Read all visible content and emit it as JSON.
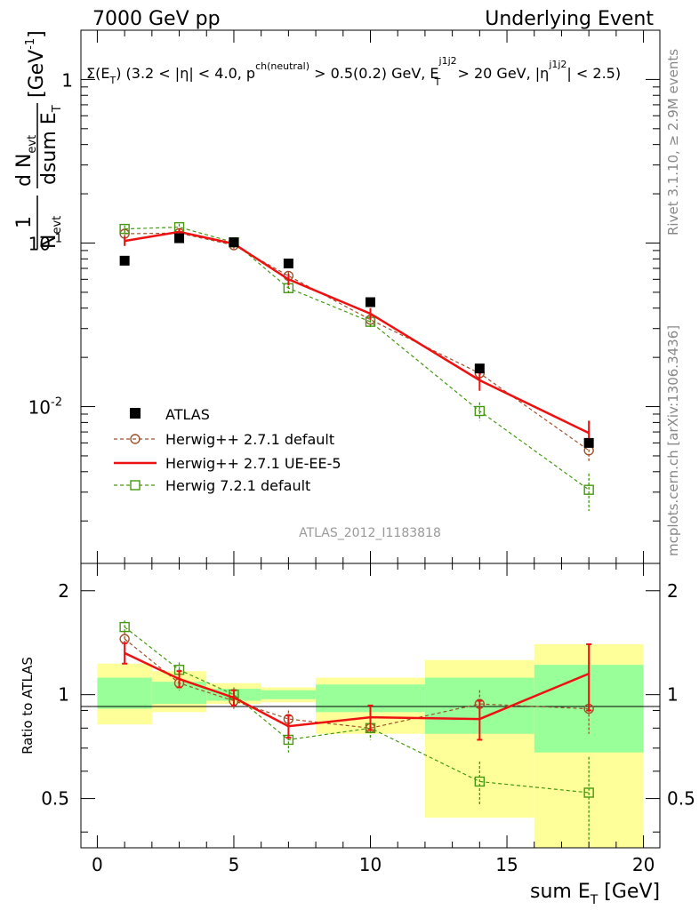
{
  "header": {
    "left": "7000 GeV pp",
    "right": "Underlying Event"
  },
  "selection_label": {
    "t1": "Σ(E",
    "t1_sub": "T",
    "t2": ") (3.2 < |η| < 4.0, p",
    "t2_sup": "ch(neutral)",
    "t3": " > 0.5(0.2) GeV, E",
    "t3_sup": "j1j2",
    "t3_sub": "T",
    "t4": " > 20 GeV, |η",
    "t4_sup": "j1j2",
    "t5": "| < 2.5)"
  },
  "y_label_main": {
    "one": "1",
    "n_evt": "N",
    "n_evt_sub": "evt",
    "d_n": "d N",
    "d_n_sub": "evt",
    "dsum": "dsum E",
    "dsum_sub": "T",
    "unit": "[GeV",
    "unit_sup": "-1",
    "unit_end": "]"
  },
  "y_label_ratio": "Ratio to ATLAS",
  "x_label": {
    "main": "sum E",
    "sub": "T",
    "unit": " [GeV]"
  },
  "analysis_tag": "ATLAS_2012_I1183818",
  "side_text": {
    "rivet": "Rivet 3.1.10, ≥ 2.9M events",
    "mcplots": "mcplots.cern.ch [arXiv:1306.3436]"
  },
  "main_y_ticks": [
    {
      "value": 1,
      "label": "1"
    },
    {
      "value": 0.1,
      "label": "10",
      "sup": "-1"
    },
    {
      "value": 0.01,
      "label": "10",
      "sup": "-2"
    }
  ],
  "x_ticks": [
    "0",
    "5",
    "10",
    "15",
    "20"
  ],
  "ratio_y_ticks": [
    "2",
    "1",
    "0.5"
  ],
  "colors": {
    "atlas": "#000000",
    "herwigpp_default": "#a0522d",
    "herwigpp_ueee5": "#ee1111",
    "herwig7": "#449911",
    "band_inner": "#99ff99",
    "band_outer": "#ffff99"
  },
  "chart_data": [
    {
      "type": "scatter",
      "panel": "main",
      "title": "Underlying Event",
      "xlabel": "sum E_T [GeV]",
      "ylabel": "1/N_evt dN_evt/dsum E_T [GeV^-1]",
      "yscale": "log",
      "xlim": [
        -0.6,
        20.6
      ],
      "ylim": [
        0.0011,
        2.0
      ],
      "legend": "lower-left",
      "x": [
        1,
        3,
        5,
        7,
        10,
        14,
        18
      ],
      "series": [
        {
          "name": "ATLAS",
          "style": "square-marker",
          "values": [
            0.078,
            0.107,
            0.101,
            0.075,
            0.0435,
            0.0171,
            0.006
          ]
        },
        {
          "name": "Herwig++ 2.7.1 default",
          "style": "dashed-circle",
          "values": [
            0.114,
            0.115,
            0.097,
            0.063,
            0.034,
            0.016,
            0.0054
          ],
          "err": [
            0.006,
            0.006,
            0.005,
            0.004,
            0.0025,
            0.0015,
            0.0008
          ]
        },
        {
          "name": "Herwig++ 2.7.1 UE-EE-5",
          "style": "solid-line",
          "values": [
            0.103,
            0.117,
            0.099,
            0.06,
            0.037,
            0.0145,
            0.0069
          ],
          "err": [
            0.007,
            0.006,
            0.005,
            0.005,
            0.003,
            0.002,
            0.0013
          ]
        },
        {
          "name": "Herwig 7.2.1 default",
          "style": "dashed-open-square",
          "values": [
            0.122,
            0.125,
            0.101,
            0.053,
            0.033,
            0.0094,
            0.0031
          ],
          "err": [
            0.006,
            0.006,
            0.005,
            0.005,
            0.003,
            0.0012,
            0.0008
          ]
        }
      ]
    },
    {
      "type": "scatter",
      "panel": "ratio",
      "ylabel": "Ratio to ATLAS",
      "xlabel": "sum E_T [GeV]",
      "yscale": "log",
      "xlim": [
        -0.6,
        20.6
      ],
      "ylim": [
        0.36,
        2.4
      ],
      "x": [
        1,
        3,
        5,
        7,
        10,
        14,
        18
      ],
      "bands": [
        {
          "x0": 0,
          "x1": 2,
          "inner": [
            0.91,
            1.12
          ],
          "outer": [
            0.82,
            1.23
          ]
        },
        {
          "x0": 2,
          "x1": 4,
          "inner": [
            0.94,
            1.09
          ],
          "outer": [
            0.89,
            1.17
          ]
        },
        {
          "x0": 4,
          "x1": 6,
          "inner": [
            0.96,
            1.04
          ],
          "outer": [
            0.94,
            1.08
          ]
        },
        {
          "x0": 6,
          "x1": 8,
          "inner": [
            0.97,
            1.03
          ],
          "outer": [
            0.95,
            1.05
          ]
        },
        {
          "x0": 8,
          "x1": 12,
          "inner": [
            0.89,
            1.07
          ],
          "outer": [
            0.77,
            1.12
          ]
        },
        {
          "x0": 12,
          "x1": 16,
          "inner": [
            0.77,
            1.12
          ],
          "outer": [
            0.44,
            1.26
          ]
        },
        {
          "x0": 16,
          "x1": 20,
          "inner": [
            0.68,
            1.22
          ],
          "outer": [
            0.36,
            1.4
          ]
        }
      ],
      "series": [
        {
          "name": "Herwig++ 2.7.1 default",
          "values": [
            1.45,
            1.08,
            0.96,
            0.85,
            0.8,
            0.94,
            0.91
          ],
          "err": [
            0.07,
            0.05,
            0.05,
            0.05,
            0.06,
            0.09,
            0.14
          ]
        },
        {
          "name": "Herwig++ 2.7.1 UE-EE-5",
          "values": [
            1.32,
            1.11,
            0.98,
            0.81,
            0.86,
            0.85,
            1.15
          ],
          "err": [
            0.09,
            0.06,
            0.05,
            0.06,
            0.07,
            0.11,
            0.25
          ]
        },
        {
          "name": "Herwig 7.2.1 default",
          "values": [
            1.57,
            1.18,
            1.0,
            0.74,
            0.8,
            0.56,
            0.52
          ],
          "err": [
            0.07,
            0.06,
            0.05,
            0.06,
            0.06,
            0.08,
            0.14
          ]
        }
      ]
    }
  ]
}
